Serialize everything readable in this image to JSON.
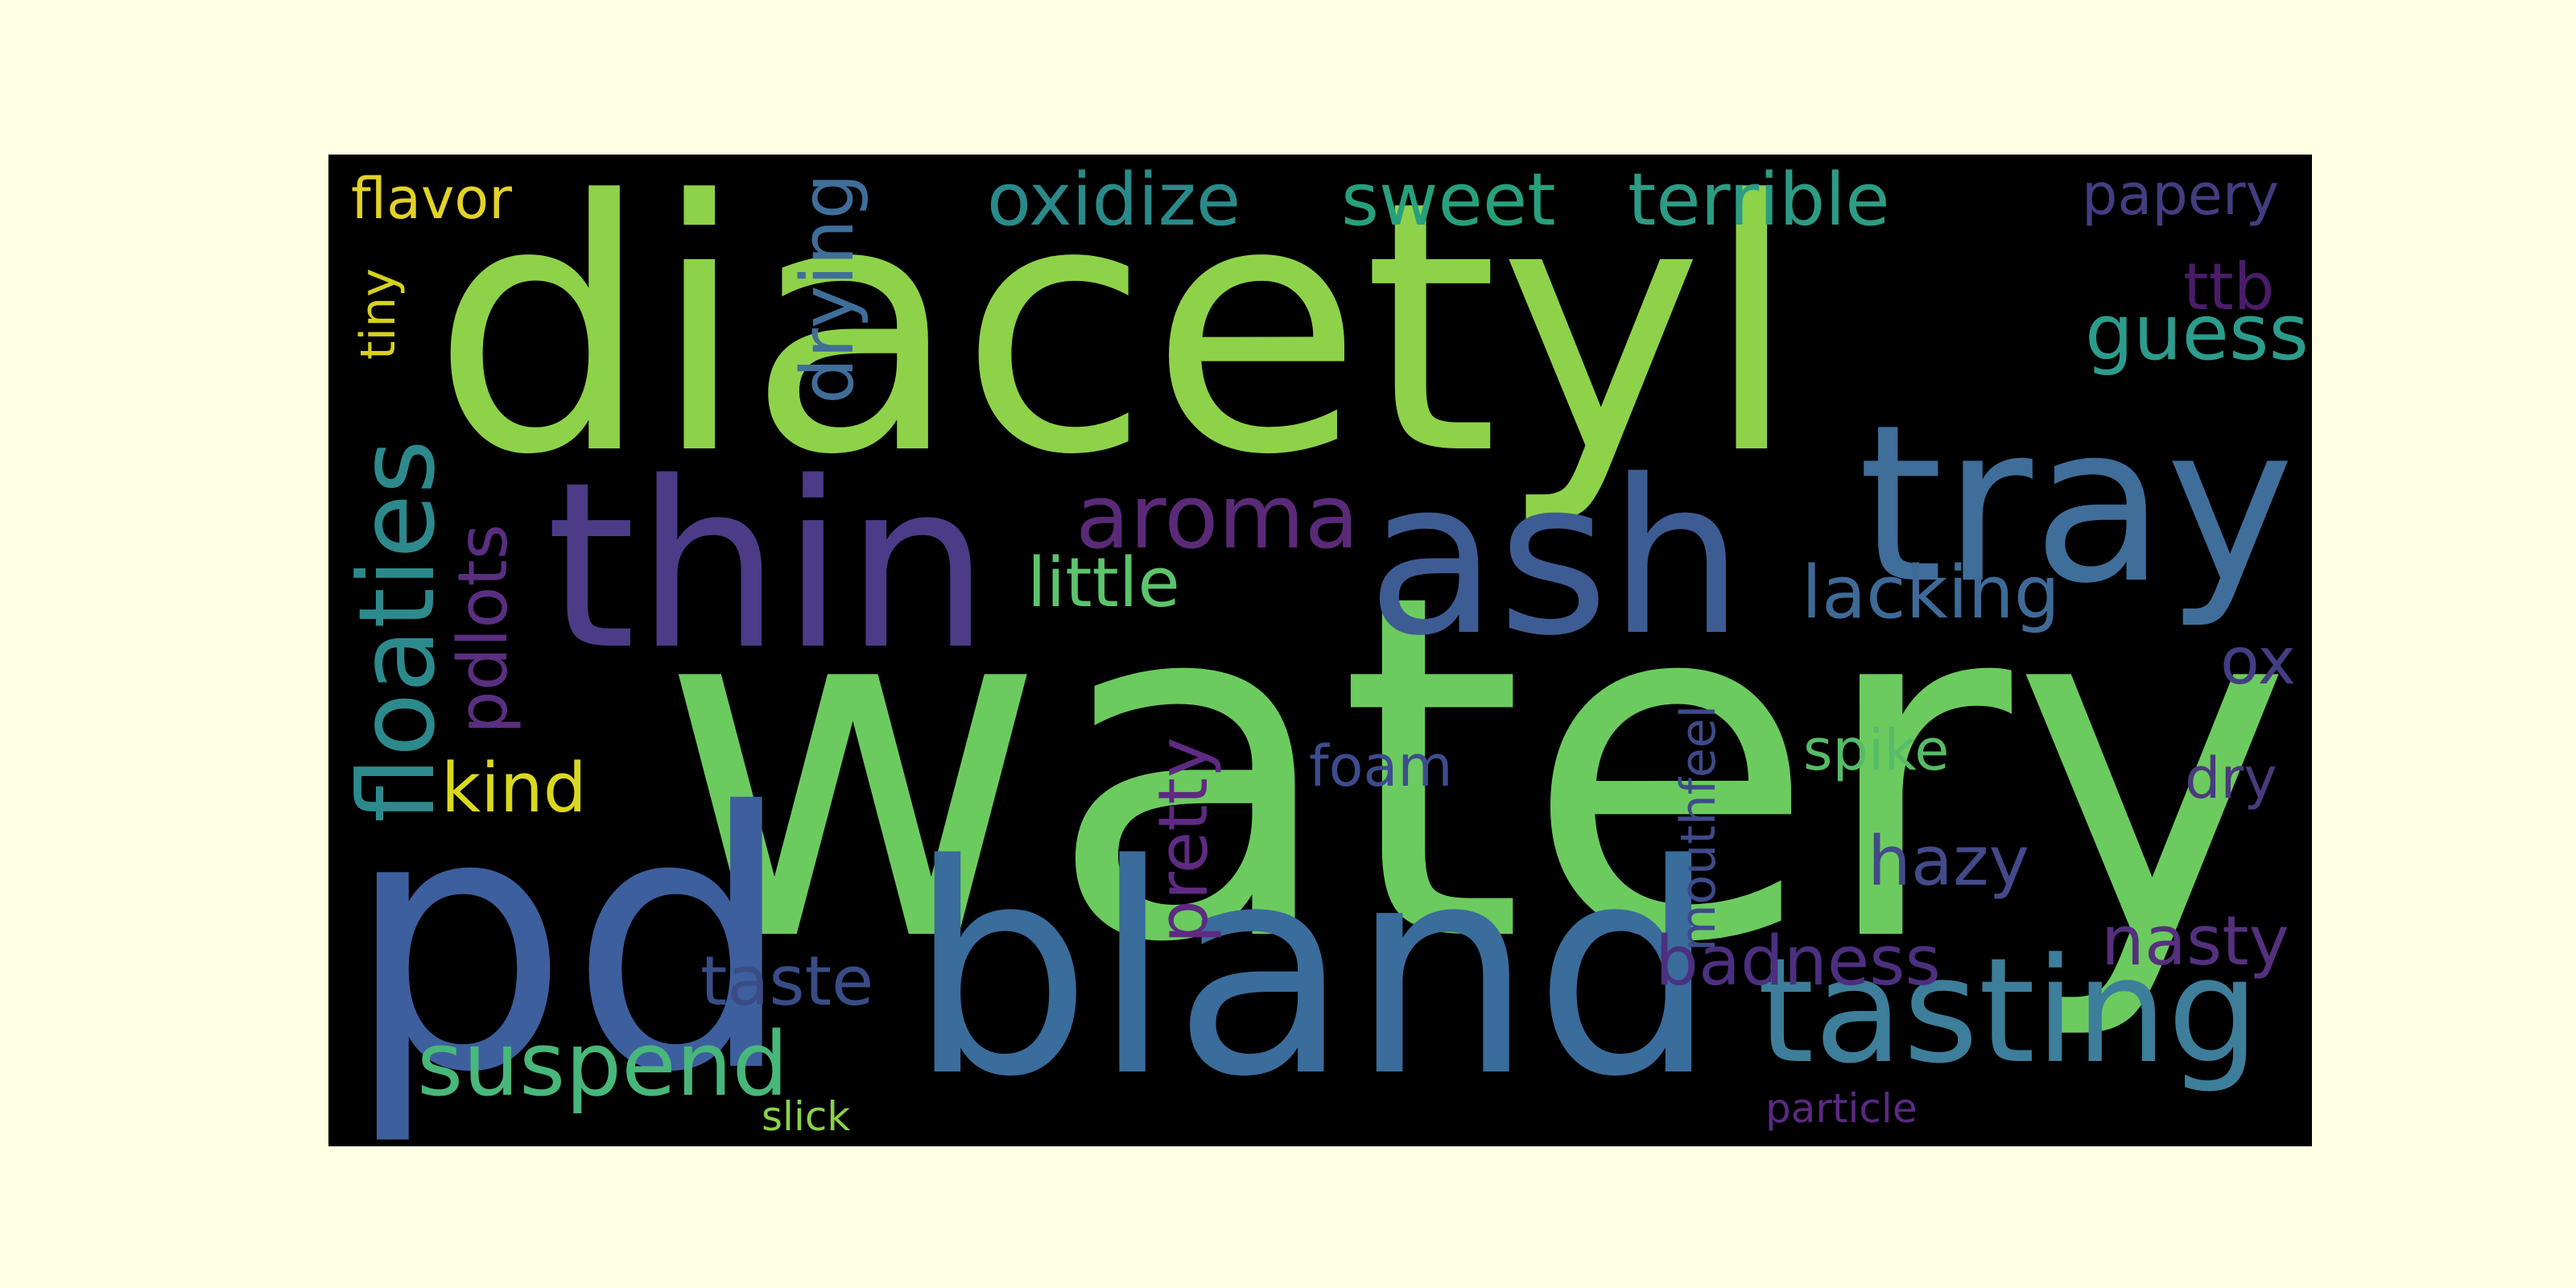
{
  "colors": {
    "page_background": "#FFFFE4",
    "cloud_background": "#000000"
  },
  "words": [
    {
      "key": "diacetyl",
      "text": "diacetyl",
      "color": "#8ED24A"
    },
    {
      "key": "watery",
      "text": "watery",
      "color": "#6CCB5F"
    },
    {
      "key": "thin",
      "text": "thin",
      "color": "#4C3B86"
    },
    {
      "key": "ash",
      "text": "ash",
      "color": "#3E5C94"
    },
    {
      "key": "tray",
      "text": "tray",
      "color": "#3F6E9A"
    },
    {
      "key": "pd",
      "text": "pd",
      "color": "#3D5F9E"
    },
    {
      "key": "bland",
      "text": "bland",
      "color": "#3A6C9C"
    },
    {
      "key": "tasting",
      "text": "tasting",
      "color": "#3D7E9A"
    },
    {
      "key": "oxidize",
      "text": "oxidize",
      "color": "#2A8A8A"
    },
    {
      "key": "sweet",
      "text": "sweet",
      "color": "#27A07C"
    },
    {
      "key": "terrible",
      "text": "terrible",
      "color": "#2C9C84"
    },
    {
      "key": "papery",
      "text": "papery",
      "color": "#433D80"
    },
    {
      "key": "flavor",
      "text": "flavor",
      "color": "#E3D227"
    },
    {
      "key": "tiny",
      "text": "tiny",
      "color": "#D5D11E"
    },
    {
      "key": "drying",
      "text": "drying",
      "color": "#3F6E9A"
    },
    {
      "key": "ttb",
      "text": "ttb",
      "color": "#4A1C6A"
    },
    {
      "key": "guess",
      "text": "guess",
      "color": "#2C9C8C"
    },
    {
      "key": "aroma",
      "text": "aroma",
      "color": "#5A2A78"
    },
    {
      "key": "little",
      "text": "little",
      "color": "#5CC46C"
    },
    {
      "key": "lacking",
      "text": "lacking",
      "color": "#3E6A98"
    },
    {
      "key": "floaties",
      "text": "floaties",
      "color": "#2C8A8C"
    },
    {
      "key": "pdlots",
      "text": "pdlots",
      "color": "#5A2E80"
    },
    {
      "key": "ox",
      "text": "ox",
      "color": "#433E82"
    },
    {
      "key": "kind",
      "text": "kind",
      "color": "#D9D81E"
    },
    {
      "key": "pretty",
      "text": "pretty",
      "color": "#5E2A82"
    },
    {
      "key": "foam",
      "text": "foam",
      "color": "#3E4C8E"
    },
    {
      "key": "mouthfeel",
      "text": "mouthfeel",
      "color": "#3E4A8A"
    },
    {
      "key": "spike",
      "text": "spike",
      "color": "#56BC66"
    },
    {
      "key": "dry",
      "text": "dry",
      "color": "#4A3A7E"
    },
    {
      "key": "hazy",
      "text": "hazy",
      "color": "#434A8A"
    },
    {
      "key": "badness",
      "text": "badness",
      "color": "#4C2F80"
    },
    {
      "key": "nasty",
      "text": "nasty",
      "color": "#55307E"
    },
    {
      "key": "taste",
      "text": "taste",
      "color": "#3A4C86"
    },
    {
      "key": "suspend",
      "text": "suspend",
      "color": "#48B77A"
    },
    {
      "key": "slick",
      "text": "slick",
      "color": "#8AD24A"
    },
    {
      "key": "particle",
      "text": "particle",
      "color": "#5A2A82"
    }
  ]
}
